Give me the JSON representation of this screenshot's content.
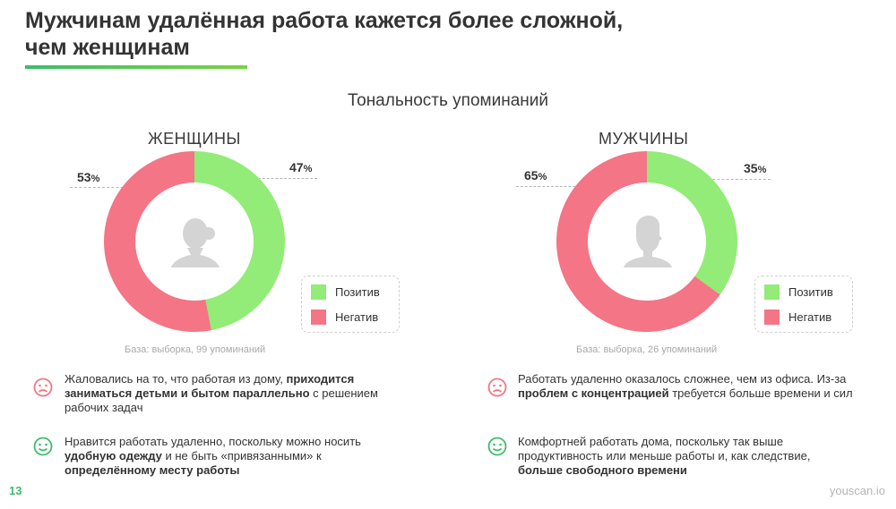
{
  "title": "Мужчинам удалённая работа кажется более сложной, чем женщинам",
  "subtitle": "Тональность упоминаний",
  "colors": {
    "positive": "#92ec77",
    "negative": "#f47585",
    "accent": "#3dbc6b",
    "silhouette": "#d4d4d4"
  },
  "legend": {
    "positive": "Позитив",
    "negative": "Негатив"
  },
  "chart_data": [
    {
      "type": "pie",
      "title": "ЖЕНЩИНЫ",
      "categories": [
        "Позитив",
        "Негатив"
      ],
      "values": [
        47,
        53
      ],
      "value_labels": {
        "positive": "47",
        "negative": "53"
      },
      "unit": "%",
      "icon": "woman-silhouette-icon",
      "base": "База: выборка, 99 упоминаний"
    },
    {
      "type": "pie",
      "title": "МУЖЧИНЫ",
      "categories": [
        "Позитив",
        "Негатив"
      ],
      "values": [
        35,
        65
      ],
      "value_labels": {
        "positive": "35",
        "negative": "65"
      },
      "unit": "%",
      "icon": "man-silhouette-icon",
      "base": "База: выборка, 26 упоминаний"
    }
  ],
  "notes": {
    "women_negative": {
      "icon": "sad-face-icon",
      "parts": [
        "Жаловались на то, что работая из дому, ",
        "приходится заниматься детьми и бытом параллельно",
        " с решением рабочих задач"
      ]
    },
    "women_positive": {
      "icon": "smile-face-icon",
      "parts": [
        "Нравится работать удаленно, поскольку можно носить ",
        "удобную одежду",
        " и не быть «привязанными» к ",
        "определённому месту работы"
      ]
    },
    "men_negative": {
      "icon": "sad-face-icon",
      "parts": [
        "Работать удаленно оказалось сложнее, чем из офиса. Из-за ",
        "проблем с концентрацией",
        " требуется больше времени и сил"
      ]
    },
    "men_positive": {
      "icon": "smile-face-icon",
      "parts": [
        "Комфортней работать дома, поскольку так выше продуктивность или меньше работы и, как следствие, ",
        "больше свободного времени"
      ]
    }
  },
  "footer": {
    "page": "13",
    "brand": "youscan.io"
  }
}
